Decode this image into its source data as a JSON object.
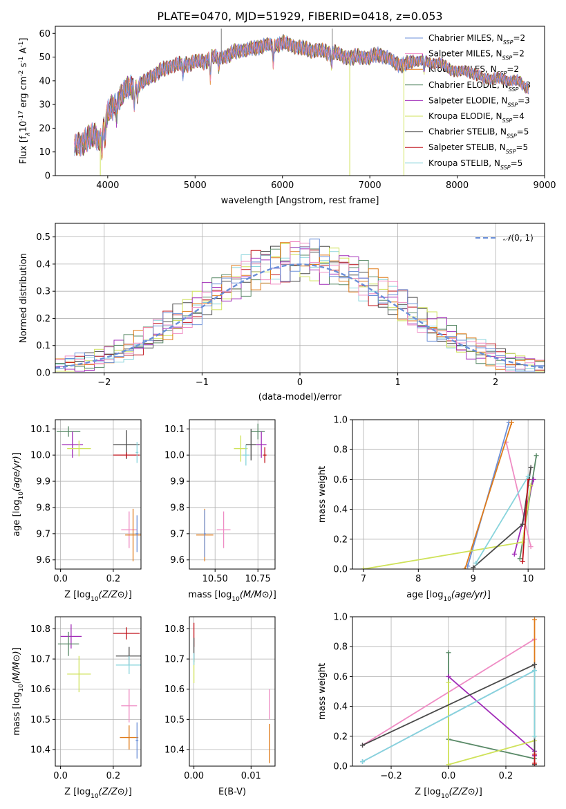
{
  "figure": {
    "title": "PLATE=0470, MJD=51929, FIBERID=0418, z=0.053"
  },
  "models": [
    {
      "label": "Chabrier MILES, N",
      "nssp": "=2",
      "color": "#6a8fd8"
    },
    {
      "label": "Salpeter MILES, N",
      "nssp": "=2",
      "color": "#ef8cc4"
    },
    {
      "label": "Kroupa MILES, N",
      "nssp": "=2",
      "color": "#e07b1a"
    },
    {
      "label": "Chabrier ELODIE, N",
      "nssp": "=3",
      "color": "#5a8a68"
    },
    {
      "label": "Salpeter ELODIE, N",
      "nssp": "=3",
      "color": "#a12cb8"
    },
    {
      "label": "Kroupa ELODIE, N",
      "nssp": "=4",
      "color": "#cfe25a"
    },
    {
      "label": "Chabrier STELIB, N",
      "nssp": "=5",
      "color": "#4a4a4a"
    },
    {
      "label": "Salpeter STELIB, N",
      "nssp": "=5",
      "color": "#c0121a"
    },
    {
      "label": "Kroupa STELIB, N",
      "nssp": "=5",
      "color": "#88d4dc"
    }
  ],
  "chart_data": [
    {
      "id": "spectrum",
      "type": "line",
      "title": "PLATE=0470, MJD=51929, FIBERID=0418, z=0.053",
      "xlabel": "wavelength [Angstrom, rest frame]",
      "ylabel_parts": [
        "Flux [f",
        "λ",
        "10",
        "-17",
        " erg cm",
        "-2",
        " s",
        "-1",
        " A",
        "-1",
        "]"
      ],
      "xlim": [
        3400,
        9000
      ],
      "ylim": [
        0,
        63
      ],
      "xticks": [
        4000,
        5000,
        6000,
        7000,
        8000,
        9000
      ],
      "yticks": [
        0,
        10,
        20,
        30,
        40,
        50,
        60
      ],
      "legend_sub": "SSP",
      "continuum": {
        "x": [
          3600,
          3700,
          3800,
          3850,
          3900,
          4000,
          4100,
          4200,
          4300,
          4400,
          4500,
          4600,
          4700,
          4800,
          4900,
          5000,
          5100,
          5200,
          5300,
          5400,
          5500,
          5600,
          5700,
          5800,
          5900,
          6000,
          6100,
          6200,
          6300,
          6400,
          6500,
          6600,
          6700,
          6800,
          6900,
          7000,
          7100,
          7200,
          7300,
          7400,
          7500,
          7600,
          7700,
          7800,
          7900,
          8000,
          8100,
          8200,
          8300,
          8400,
          8500,
          8600,
          8700,
          8800
        ],
        "y": [
          12,
          14,
          16,
          17,
          15,
          26,
          31,
          36,
          38,
          39,
          42,
          44,
          46,
          47,
          47,
          48,
          48,
          50,
          50,
          51,
          53,
          53,
          54,
          55,
          55,
          56,
          55,
          54,
          53,
          53,
          52,
          52,
          50,
          50,
          50,
          50,
          51,
          50,
          47,
          47,
          48,
          49,
          47,
          48,
          45,
          44,
          44,
          43,
          41,
          41,
          41,
          40,
          40,
          37
        ]
      },
      "absorption_lines": [
        {
          "x": 3934,
          "depth": 9
        },
        {
          "x": 3969,
          "depth": 8
        },
        {
          "x": 4102,
          "depth": 5
        },
        {
          "x": 4304,
          "depth": 9
        },
        {
          "x": 4341,
          "depth": 6
        },
        {
          "x": 4861,
          "depth": 5
        },
        {
          "x": 5175,
          "depth": 8
        },
        {
          "x": 5270,
          "depth": 5
        },
        {
          "x": 5895,
          "depth": 8
        },
        {
          "x": 6563,
          "depth": 5
        },
        {
          "x": 7620,
          "depth": 4
        }
      ],
      "spikes": [
        {
          "x": 3915,
          "y": 0
        },
        {
          "x": 5300,
          "y": 62
        },
        {
          "x": 6570,
          "y": 62
        },
        {
          "x": 6770,
          "y": 0
        },
        {
          "x": 7390,
          "y": 0
        }
      ]
    },
    {
      "id": "residuals",
      "type": "step",
      "xlabel": "(data-model)/error",
      "ylabel": "Normed distribution",
      "xlim": [
        -2.5,
        2.5
      ],
      "ylim": [
        0,
        0.55
      ],
      "xticks": [
        -2,
        -1,
        0,
        1,
        2
      ],
      "yticks": [
        0.0,
        0.1,
        0.2,
        0.3,
        0.4,
        0.5
      ],
      "reference_label": "N(0,1)",
      "bin_width": 0.1
    },
    {
      "id": "age-vs-z",
      "type": "errorbar",
      "xlabel": "Z [log10(Z/Z⊙)]",
      "ylabel": "age [log10(age/yr)]",
      "xlim": [
        -0.02,
        0.305
      ],
      "ylim": [
        9.565,
        10.135
      ],
      "xticks": [
        0.0,
        0.2
      ],
      "yticks": [
        9.6,
        9.7,
        9.8,
        9.9,
        10.0,
        10.1
      ],
      "points": [
        {
          "x": 0.03,
          "xerr": 0.045,
          "y": 10.09,
          "yerr": 0.02,
          "model": 3
        },
        {
          "x": 0.045,
          "xerr": 0.04,
          "y": 10.04,
          "yerr": 0.05,
          "model": 4
        },
        {
          "x": 0.07,
          "xerr": 0.045,
          "y": 10.025,
          "yerr": 0.03,
          "model": 5
        },
        {
          "x": 0.25,
          "xerr": 0.05,
          "y": 10.04,
          "yerr": 0.055,
          "model": 6
        },
        {
          "x": 0.25,
          "xerr": 0.05,
          "y": 10.0,
          "yerr": 0.01,
          "model": 7
        },
        {
          "x": 0.29,
          "xerr": 0.005,
          "y": 10.01,
          "yerr": 0.04,
          "model": 8
        },
        {
          "x": 0.26,
          "xerr": 0.03,
          "y": 9.715,
          "yerr": 0.07,
          "model": 1
        },
        {
          "x": 0.275,
          "xerr": 0.03,
          "y": 9.695,
          "yerr": 0.1,
          "model": 2
        },
        {
          "x": 0.29,
          "xerr": 0.005,
          "y": 9.7,
          "yerr": 0.07,
          "model": 0
        }
      ]
    },
    {
      "id": "age-vs-mass",
      "type": "errorbar",
      "xlabel": "mass [log10(M/M⊙)]",
      "ylabel": "",
      "xlim": [
        10.35,
        10.85
      ],
      "ylim": [
        9.565,
        10.135
      ],
      "xticks": [
        10.5,
        10.75
      ],
      "yticks": [
        9.6,
        9.7,
        9.8,
        9.9,
        10.0,
        10.1
      ],
      "points": [
        {
          "x": 10.44,
          "xerr": 0.05,
          "y": 9.695,
          "yerr": 0.1,
          "model": 2
        },
        {
          "x": 10.44,
          "xerr": 0.005,
          "y": 9.7,
          "yerr": 0.09,
          "model": 0
        },
        {
          "x": 10.55,
          "xerr": 0.04,
          "y": 9.715,
          "yerr": 0.07,
          "model": 1
        },
        {
          "x": 10.65,
          "xerr": 0.04,
          "y": 10.025,
          "yerr": 0.05,
          "model": 5
        },
        {
          "x": 10.68,
          "xerr": 0.02,
          "y": 10.0,
          "yerr": 0.04,
          "model": 8
        },
        {
          "x": 10.71,
          "xerr": 0.03,
          "y": 10.04,
          "yerr": 0.06,
          "model": 6
        },
        {
          "x": 10.75,
          "xerr": 0.04,
          "y": 10.09,
          "yerr": 0.03,
          "model": 3
        },
        {
          "x": 10.77,
          "xerr": 0.03,
          "y": 10.04,
          "yerr": 0.05,
          "model": 4
        },
        {
          "x": 10.79,
          "xerr": 0.01,
          "y": 10.0,
          "yerr": 0.03,
          "model": 7
        }
      ]
    },
    {
      "id": "massweight-vs-age",
      "type": "line",
      "xlabel": "age [log10(age/yr)]",
      "ylabel": "mass weight",
      "xlim": [
        6.8,
        10.3
      ],
      "ylim": [
        0,
        1
      ],
      "xticks": [
        7,
        8,
        9,
        10
      ],
      "yticks": [
        0.0,
        0.2,
        0.4,
        0.6,
        0.8,
        1.0
      ],
      "series": [
        {
          "model": 0,
          "x": [
            8.9,
            9.65
          ],
          "y": [
            0.02,
            0.98
          ]
        },
        {
          "model": 1,
          "x": [
            9.6,
            10.05
          ],
          "y": [
            0.85,
            0.15
          ]
        },
        {
          "model": 2,
          "x": [
            8.85,
            9.7
          ],
          "y": [
            0.0,
            0.98
          ]
        },
        {
          "model": 3,
          "x": [
            9.85,
            10.15
          ],
          "y": [
            0.07,
            0.76
          ]
        },
        {
          "model": 4,
          "x": [
            9.75,
            10.1
          ],
          "y": [
            0.1,
            0.6
          ]
        },
        {
          "model": 5,
          "x": [
            7.0,
            9.9,
            10.05
          ],
          "y": [
            0.0,
            0.18,
            0.56
          ]
        },
        {
          "model": 6,
          "x": [
            9.0,
            9.9,
            10.05
          ],
          "y": [
            0.01,
            0.3,
            0.68
          ]
        },
        {
          "model": 7,
          "x": [
            9.9,
            10.0
          ],
          "y": [
            0.05,
            0.6
          ]
        },
        {
          "model": 8,
          "x": [
            9.05,
            10.0
          ],
          "y": [
            0.04,
            0.62
          ]
        }
      ]
    },
    {
      "id": "mass-vs-z",
      "type": "errorbar",
      "xlabel": "Z [log10(Z/Z⊙)]",
      "ylabel": "mass [log10(M/M⊙)]",
      "xlim": [
        -0.02,
        0.305
      ],
      "ylim": [
        10.345,
        10.84
      ],
      "xticks": [
        0.0,
        0.2
      ],
      "yticks": [
        10.4,
        10.5,
        10.6,
        10.7,
        10.8
      ],
      "points": [
        {
          "x": 0.04,
          "xerr": 0.04,
          "y": 10.775,
          "yerr": 0.04,
          "model": 4
        },
        {
          "x": 0.03,
          "xerr": 0.04,
          "y": 10.75,
          "yerr": 0.04,
          "model": 3
        },
        {
          "x": 0.07,
          "xerr": 0.045,
          "y": 10.65,
          "yerr": 0.06,
          "model": 5
        },
        {
          "x": 0.25,
          "xerr": 0.05,
          "y": 10.785,
          "yerr": 0.02,
          "model": 7
        },
        {
          "x": 0.26,
          "xerr": 0.05,
          "y": 10.71,
          "yerr": 0.03,
          "model": 6
        },
        {
          "x": 0.26,
          "xerr": 0.05,
          "y": 10.68,
          "yerr": 0.03,
          "model": 8
        },
        {
          "x": 0.26,
          "xerr": 0.03,
          "y": 10.545,
          "yerr": 0.055,
          "model": 1
        },
        {
          "x": 0.26,
          "xerr": 0.035,
          "y": 10.44,
          "yerr": 0.04,
          "model": 2
        },
        {
          "x": 0.29,
          "xerr": 0.005,
          "y": 10.43,
          "yerr": 0.06,
          "model": 0
        }
      ]
    },
    {
      "id": "mass-vs-ebv",
      "type": "errorbar",
      "xlabel": "E(B-V)",
      "ylabel": "",
      "xlim": [
        -0.0008,
        0.0142
      ],
      "ylim": [
        10.345,
        10.84
      ],
      "xticks": [
        0.0,
        0.01
      ],
      "yticks": [
        10.4,
        10.5,
        10.6,
        10.7,
        10.8
      ],
      "points": [
        {
          "x": 0.0,
          "xerr": 0.0,
          "y": 10.78,
          "yerr": 0.04,
          "model": 7
        },
        {
          "x": 0.0,
          "xerr": 0.0,
          "y": 10.73,
          "yerr": 0.04,
          "model": 6
        },
        {
          "x": 0.0,
          "xerr": 0.0,
          "y": 10.66,
          "yerr": 0.04,
          "model": 5
        },
        {
          "x": 0.0,
          "xerr": 0.0,
          "y": 10.7,
          "yerr": 0.02,
          "model": 8
        },
        {
          "x": 0.0132,
          "xerr": 0.0,
          "y": 10.55,
          "yerr": 0.05,
          "model": 1
        },
        {
          "x": 0.0132,
          "xerr": 0.0,
          "y": 10.42,
          "yerr": 0.065,
          "model": 2
        }
      ]
    },
    {
      "id": "massweight-vs-z",
      "type": "line",
      "xlabel": "Z [log10(Z/Z⊙)]",
      "ylabel": "mass weight",
      "xlim": [
        -0.335,
        0.335
      ],
      "ylim": [
        0,
        1
      ],
      "xticks": [
        -0.2,
        0.0,
        0.2
      ],
      "yticks": [
        0.0,
        0.2,
        0.4,
        0.6,
        0.8,
        1.0
      ],
      "series": [
        {
          "model": 0,
          "x": [
            -0.3,
            0.3
          ],
          "y": [
            0.03,
            0.64
          ]
        },
        {
          "model": 1,
          "x": [
            -0.3,
            0.3
          ],
          "y": [
            0.14,
            0.85
          ]
        },
        {
          "model": 2,
          "x": [
            0.3,
            0.3
          ],
          "y": [
            0.02,
            0.98
          ]
        },
        {
          "model": 3,
          "x": [
            0.0,
            0.0,
            0.3,
            0.3
          ],
          "y": [
            0.76,
            0.18,
            0.05,
            0.2
          ]
        },
        {
          "model": 4,
          "x": [
            0.0,
            0.3,
            0.3
          ],
          "y": [
            0.6,
            0.1,
            0.07
          ]
        },
        {
          "model": 5,
          "x": [
            0.0,
            0.0,
            0.3,
            0.3
          ],
          "y": [
            0.56,
            0.01,
            0.17,
            0.2
          ]
        },
        {
          "model": 6,
          "x": [
            -0.3,
            0.3,
            0.3
          ],
          "y": [
            0.14,
            0.68,
            0.01
          ]
        },
        {
          "model": 7,
          "x": [
            0.3,
            0.3
          ],
          "y": [
            0.02,
            0.08
          ]
        },
        {
          "model": 8,
          "x": [
            -0.3,
            0.3,
            0.3
          ],
          "y": [
            0.03,
            0.64,
            0.2
          ]
        }
      ]
    }
  ]
}
